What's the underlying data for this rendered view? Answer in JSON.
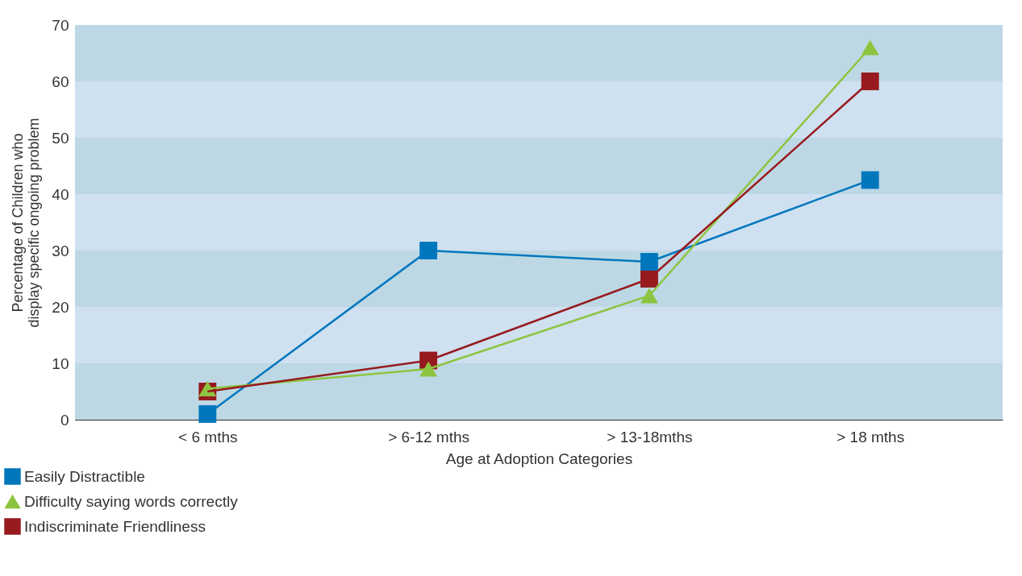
{
  "chart_data": {
    "type": "line",
    "xlabel": "Age at Adoption Categories",
    "ylabel": "Percentage of Children who display specific ongoing problem",
    "categories": [
      "< 6 mths",
      "> 6-12 mths",
      "> 13-18mths",
      "> 18 mths"
    ],
    "series": [
      {
        "name": "Easily Distractible",
        "color": "#0077bd",
        "marker": "square",
        "values": [
          1,
          30,
          28,
          42.5
        ]
      },
      {
        "name": "Difficulty saying words correctly",
        "color": "#8dc43f",
        "marker": "triangle",
        "values": [
          5.5,
          9,
          22,
          66
        ]
      },
      {
        "name": "Indiscriminate Friendliness",
        "color": "#961a1e",
        "marker": "square",
        "values": [
          5,
          10.5,
          25,
          60
        ]
      }
    ],
    "ylim": [
      0,
      70
    ],
    "yticks": [
      0,
      10,
      20,
      30,
      40,
      50,
      60,
      70
    ],
    "grid": "y",
    "legend": "bottom left",
    "line_style": "solid"
  }
}
